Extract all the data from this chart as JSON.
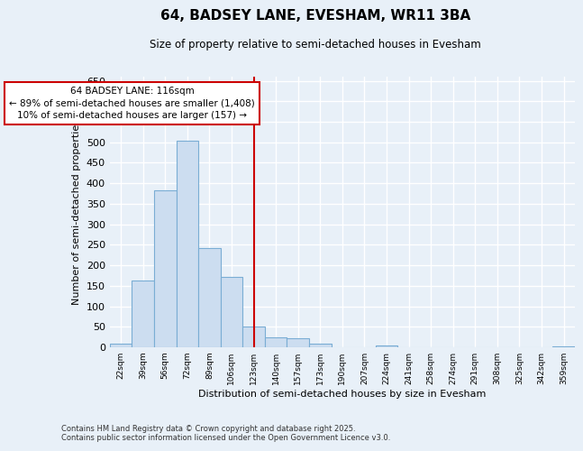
{
  "title": "64, BADSEY LANE, EVESHAM, WR11 3BA",
  "subtitle": "Size of property relative to semi-detached houses in Evesham",
  "xlabel": "Distribution of semi-detached houses by size in Evesham",
  "ylabel": "Number of semi-detached properties",
  "categories": [
    "22sqm",
    "39sqm",
    "56sqm",
    "72sqm",
    "89sqm",
    "106sqm",
    "123sqm",
    "140sqm",
    "157sqm",
    "173sqm",
    "190sqm",
    "207sqm",
    "224sqm",
    "241sqm",
    "258sqm",
    "274sqm",
    "291sqm",
    "308sqm",
    "325sqm",
    "342sqm",
    "359sqm"
  ],
  "values": [
    8,
    163,
    383,
    503,
    242,
    172,
    51,
    24,
    22,
    8,
    0,
    0,
    4,
    0,
    0,
    0,
    0,
    0,
    0,
    0,
    3
  ],
  "bar_color": "#ccddf0",
  "bar_edge_color": "#7aadd4",
  "annotation_label": "64 BADSEY LANE: 116sqm",
  "annotation_smaller": "← 89% of semi-detached houses are smaller (1,408)",
  "annotation_larger": "10% of semi-detached houses are larger (157) →",
  "annotation_box_facecolor": "#ffffff",
  "annotation_box_edgecolor": "#cc0000",
  "ref_line_color": "#cc0000",
  "ylim": [
    0,
    660
  ],
  "yticks": [
    0,
    50,
    100,
    150,
    200,
    250,
    300,
    350,
    400,
    450,
    500,
    550,
    600,
    650
  ],
  "background_color": "#e8f0f8",
  "grid_color": "#ffffff",
  "footer_line1": "Contains HM Land Registry data © Crown copyright and database right 2025.",
  "footer_line2": "Contains public sector information licensed under the Open Government Licence v3.0."
}
